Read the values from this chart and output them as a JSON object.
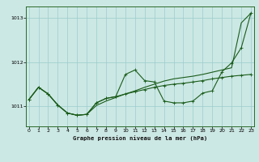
{
  "title": "Graphe pression niveau de la mer (hPa)",
  "background_color": "#cce8e4",
  "grid_color": "#99cccc",
  "line_color": "#1a5c1a",
  "x_ticks": [
    0,
    1,
    2,
    3,
    4,
    5,
    6,
    7,
    8,
    9,
    10,
    11,
    12,
    13,
    14,
    15,
    16,
    17,
    18,
    19,
    20,
    21,
    22,
    23
  ],
  "y_ticks": [
    1011,
    1012,
    1013
  ],
  "ylim": [
    1010.55,
    1013.25
  ],
  "xlim": [
    -0.3,
    23.3
  ],
  "y_trend": [
    1011.15,
    1011.43,
    1011.28,
    1011.03,
    1010.85,
    1010.8,
    1010.82,
    1011.02,
    1011.12,
    1011.2,
    1011.28,
    1011.35,
    1011.43,
    1011.5,
    1011.57,
    1011.62,
    1011.65,
    1011.68,
    1011.72,
    1011.77,
    1011.82,
    1011.87,
    1012.88,
    1013.1
  ],
  "y_zigzag": [
    1011.15,
    1011.43,
    1011.28,
    1011.03,
    1010.85,
    1010.8,
    1010.82,
    1011.08,
    1011.18,
    1011.22,
    1011.72,
    1011.82,
    1011.58,
    1011.55,
    1011.12,
    1011.08,
    1011.08,
    1011.12,
    1011.3,
    1011.35,
    1011.78,
    1011.98,
    1012.32,
    1013.1
  ],
  "y_flat": [
    1011.15,
    1011.43,
    1011.28,
    1011.03,
    1010.85,
    1010.8,
    1010.82,
    1011.08,
    1011.18,
    1011.22,
    1011.28,
    1011.33,
    1011.38,
    1011.43,
    1011.47,
    1011.5,
    1011.52,
    1011.55,
    1011.58,
    1011.62,
    1011.65,
    1011.68,
    1011.7,
    1011.72
  ]
}
